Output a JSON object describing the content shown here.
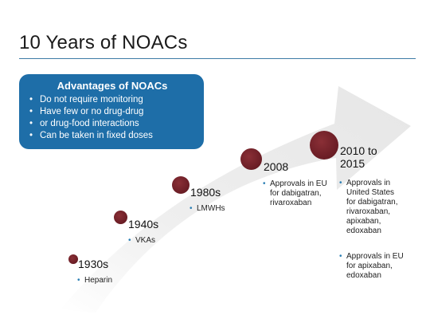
{
  "slide": {
    "title": "10 Years of NOACs"
  },
  "advantages": {
    "title": "Advantages of NOACs",
    "items": [
      "Do not require monitoring",
      "Have few or no drug-drug",
      "or drug-food interactions",
      "Can be taken in fixed doses"
    ]
  },
  "timeline": [
    {
      "year": "1930s",
      "notes": [
        "Heparin"
      ]
    },
    {
      "year": "1940s",
      "notes": [
        "VKAs"
      ]
    },
    {
      "year": "1980s",
      "notes": [
        "LMWHs"
      ]
    },
    {
      "year": "2008",
      "notes": [
        "Approvals in EU for dabigatran, rivaroxaban"
      ]
    },
    {
      "year": "2010 to 2015",
      "notes": [
        "Approvals in United States for dabigatran, rivaroxaban, apixaban, edoxaban",
        "Approvals in EU for apixaban, edoxaban"
      ]
    }
  ],
  "colors": {
    "accent_blue": "#1e6ea8",
    "dot_red": "#6e1f27",
    "bullet_blue": "#2b7fb4"
  }
}
